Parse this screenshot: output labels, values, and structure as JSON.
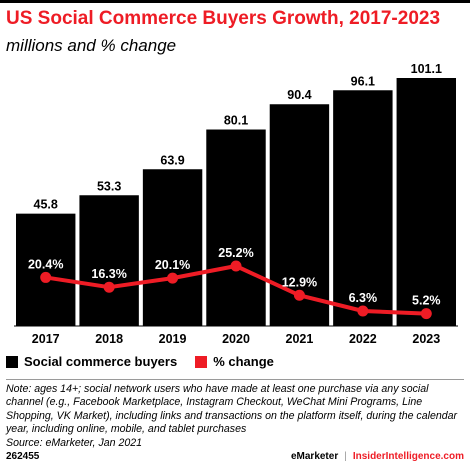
{
  "header": {
    "title": "US Social Commerce Buyers Growth, 2017-2023",
    "subtitle": "millions and % change"
  },
  "chart_data": {
    "type": "bar",
    "categories": [
      "2017",
      "2018",
      "2019",
      "2020",
      "2021",
      "2022",
      "2023"
    ],
    "series": [
      {
        "name": "Social commerce buyers",
        "type": "bar",
        "values": [
          45.8,
          53.3,
          63.9,
          80.1,
          90.4,
          96.1,
          101.1
        ],
        "labels": [
          "45.8",
          "53.3",
          "63.9",
          "80.1",
          "90.4",
          "96.1",
          "101.1"
        ],
        "color": "#000000"
      },
      {
        "name": "% change",
        "type": "line",
        "values": [
          20.4,
          16.3,
          20.1,
          25.2,
          12.9,
          6.3,
          5.2
        ],
        "labels": [
          "20.4%",
          "16.3%",
          "20.1%",
          "25.2%",
          "12.9%",
          "6.3%",
          "5.2%"
        ],
        "color": "#ee1c25"
      }
    ],
    "legend_position": "bottom-left",
    "grid": false
  },
  "legend": [
    {
      "label": "Social commerce buyers",
      "color": "#000000"
    },
    {
      "label": "% change",
      "color": "#ee1c25"
    }
  ],
  "note": "Note: ages 14+; social network users who have made at least one purchase via any social channel (e.g., Facebook Marketplace, Instagram Checkout, WeChat Mini Programs, Line Shopping, VK Market), including links and transactions on the platform itself, during the calendar year, including online, mobile, and tablet purchases",
  "source": "Source: eMarketer, Jan 2021",
  "footer": {
    "id": "262455",
    "brand": "eMarketer",
    "separator": "|",
    "brand2": "InsiderIntelligence.com"
  }
}
